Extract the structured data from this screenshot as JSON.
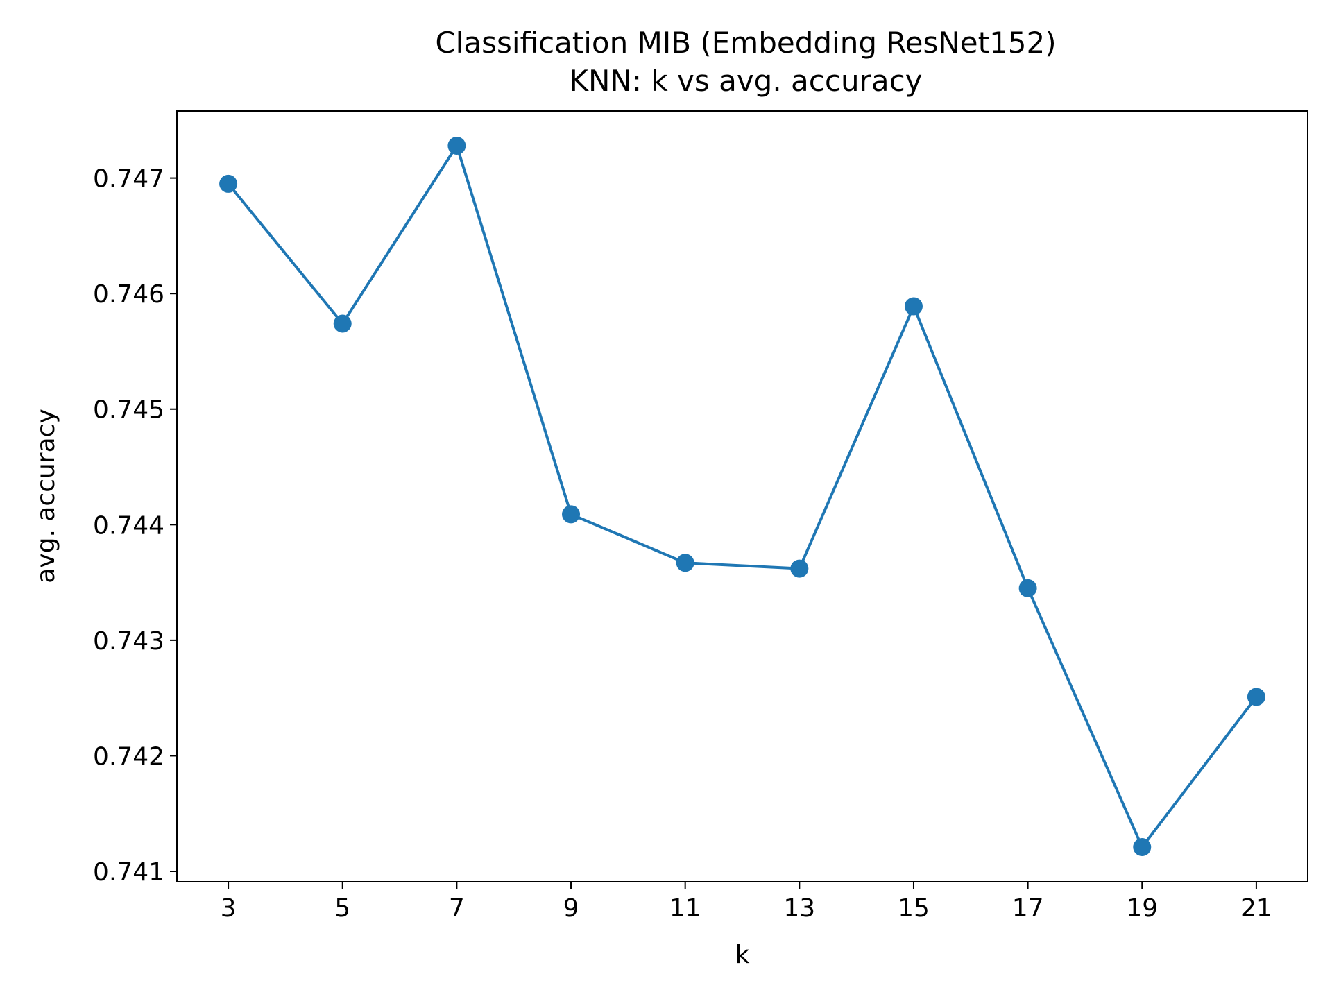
{
  "chart_data": {
    "type": "line",
    "title": "Classification MIB (Embedding ResNet152)",
    "subtitle": "KNN: k vs  avg. accuracy",
    "xlabel": "k",
    "ylabel": "avg. accuracy",
    "x": [
      3,
      5,
      7,
      9,
      11,
      13,
      15,
      17,
      19,
      21
    ],
    "series": [
      {
        "values": [
          0.74695,
          0.74574,
          0.74728,
          0.74409,
          0.74367,
          0.74362,
          0.74589,
          0.74345,
          0.74121,
          0.74251
        ],
        "color": "#1f77b4",
        "marker": "circle"
      }
    ],
    "xticks": [
      3,
      5,
      7,
      9,
      11,
      13,
      15,
      17,
      19,
      21
    ],
    "xtick_labels": [
      "3",
      "5",
      "7",
      "9",
      "11",
      "13",
      "15",
      "17",
      "19",
      "21"
    ],
    "yticks": [
      0.741,
      0.742,
      0.743,
      0.744,
      0.745,
      0.746,
      0.747
    ],
    "ytick_labels": [
      "0.741",
      "0.742",
      "0.743",
      "0.744",
      "0.745",
      "0.746",
      "0.747"
    ],
    "xlim": [
      2.1,
      21.9
    ],
    "ylim": [
      0.74091,
      0.74758
    ],
    "grid": false,
    "legend": "none"
  }
}
